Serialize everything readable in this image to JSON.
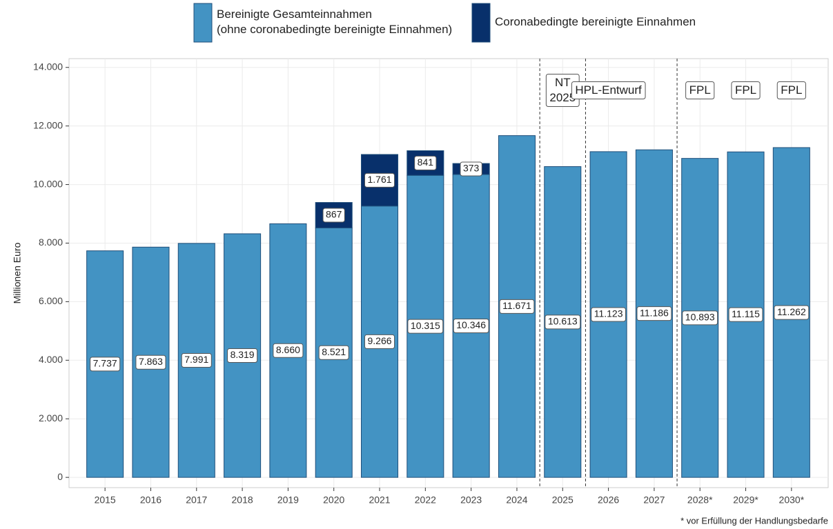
{
  "chart_data": {
    "type": "stacked-bar",
    "categories": [
      "2015",
      "2016",
      "2017",
      "2018",
      "2019",
      "2020",
      "2021",
      "2022",
      "2023",
      "2024",
      "2025",
      "2026",
      "2027",
      "2028*",
      "2029*",
      "2030*"
    ],
    "series": [
      {
        "name": "Bereinigte Gesamteinnahmen\n(ohne coronabedingte bereinigte Einnahmen)",
        "color": "#4393c3",
        "values": [
          7737,
          7863,
          7991,
          8319,
          8660,
          8521,
          9266,
          10315,
          10346,
          11671,
          10613,
          11123,
          11186,
          10893,
          11115,
          11262
        ],
        "value_labels": [
          "7.737",
          "7.863",
          "7.991",
          "8.319",
          "8.660",
          "8.521",
          "9.266",
          "10.315",
          "10.346",
          "11.671",
          "10.613",
          "11.123",
          "11.186",
          "10.893",
          "11.115",
          "11.262"
        ]
      },
      {
        "name": "Coronabedingte bereinigte Einnahmen",
        "color": "#08306b",
        "values": [
          null,
          null,
          null,
          null,
          null,
          867,
          1761,
          841,
          373,
          null,
          null,
          null,
          null,
          null,
          null,
          null
        ],
        "value_labels": [
          null,
          null,
          null,
          null,
          null,
          "867",
          "1.761",
          "841",
          "373",
          null,
          null,
          null,
          null,
          null,
          null,
          null
        ]
      }
    ],
    "ylabel": "Millionen Euro",
    "ylim": [
      -350,
      14300
    ],
    "yticks": [
      0,
      {
        "value": 2000,
        "label": "2.000"
      },
      {
        "value": 4000,
        "label": "4.000"
      },
      {
        "value": 6000,
        "label": "6.000"
      },
      {
        "value": 8000,
        "label": "8.000"
      },
      {
        "value": 10000,
        "label": "10.000"
      },
      {
        "value": 12000,
        "label": "12.000"
      },
      {
        "value": 14000,
        "label": "14.000"
      }
    ],
    "grid": true,
    "annotations": [
      {
        "text": "NT\n2025",
        "x": "2025"
      },
      {
        "text": "HPL-Entwurf",
        "x": "2026"
      },
      {
        "text": "FPL",
        "x": "2028*"
      },
      {
        "text": "FPL",
        "x": "2029*"
      },
      {
        "text": "FPL",
        "x": "2030*"
      }
    ],
    "footnote": "* vor Erfüllung der Handlungsbedarfe"
  }
}
